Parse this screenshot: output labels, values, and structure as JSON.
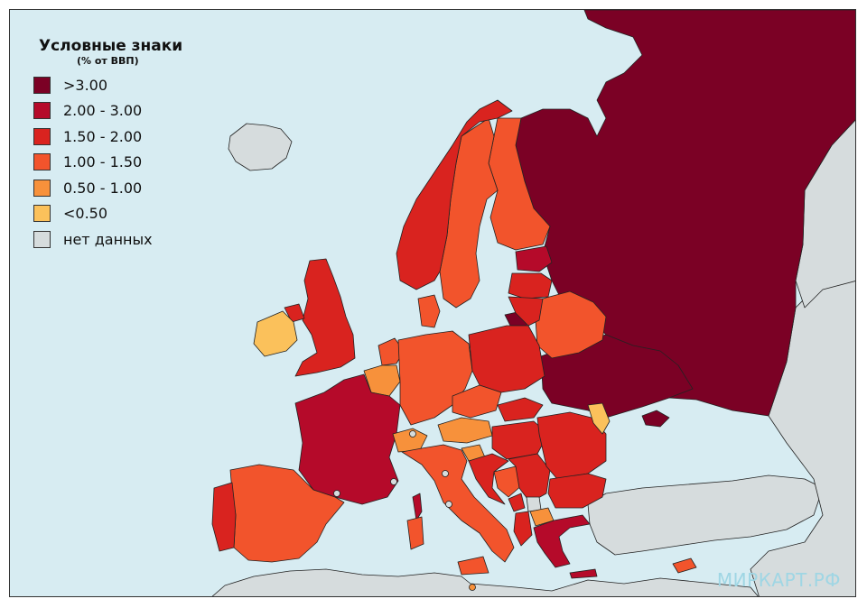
{
  "legend": {
    "title": "Условные знаки",
    "subtitle": "(% от ВВП)",
    "items": [
      {
        "label": ">3.00",
        "color": "#7b0125"
      },
      {
        "label": "2.00 - 3.00",
        "color": "#b50a2a"
      },
      {
        "label": "1.50 - 2.00",
        "color": "#d9231f"
      },
      {
        "label": "1.00 - 1.50",
        "color": "#f2542c"
      },
      {
        "label": "0.50 - 1.00",
        "color": "#f7913b"
      },
      {
        "label": "<0.50",
        "color": "#fbc15b"
      },
      {
        "label": "нет данных",
        "color": "#d6dcdd"
      }
    ]
  },
  "watermark": "МИРКАРТ.РФ",
  "colors": {
    "sea": "#d7ecf2",
    "no_data": "#d6dcdd",
    "border": "#222222"
  },
  "regions": {
    "russia": ">3.00",
    "ukraine": ">3.00",
    "belarus": "1.00 - 1.50",
    "estonia": "2.00 - 3.00",
    "latvia": "1.50 - 2.00",
    "lithuania": "1.50 - 2.00",
    "kaliningrad": ">3.00",
    "finland": "1.00 - 1.50",
    "sweden": "1.00 - 1.50",
    "norway": "1.50 - 2.00",
    "denmark": "1.00 - 1.50",
    "united_kingdom": "1.50 - 2.00",
    "ireland": "<0.50",
    "northern_ireland": "1.50 - 2.00",
    "france": "2.00 - 3.00",
    "spain": "1.00 - 1.50",
    "portugal": "1.50 - 2.00",
    "benelux": "0.50 - 1.00",
    "netherlands": "1.00 - 1.50",
    "germany": "1.00 - 1.50",
    "poland": "1.50 - 2.00",
    "czechia": "1.00 - 1.50",
    "slovakia": "1.50 - 2.00",
    "austria": "0.50 - 1.00",
    "switzerland": "0.50 - 1.00",
    "italy": "1.00 - 1.50",
    "slovenia": "0.50 - 1.00",
    "croatia": "1.50 - 2.00",
    "hungary": "1.50 - 2.00",
    "bosnia": "1.00 - 1.50",
    "serbia": "1.50 - 2.00",
    "romania": "1.50 - 2.00",
    "moldova": "<0.50",
    "bulgaria": "1.50 - 2.00",
    "montenegro": "1.50 - 2.00",
    "north_macedonia": "0.50 - 1.00",
    "kosovo": "нет данных",
    "albania": "1.50 - 2.00",
    "greece": "2.00 - 3.00",
    "cyprus": "1.00 - 1.50",
    "iceland": "нет данных",
    "turkey": "нет данных",
    "north_africa": "нет данных",
    "caucasus_asia": "нет данных"
  }
}
